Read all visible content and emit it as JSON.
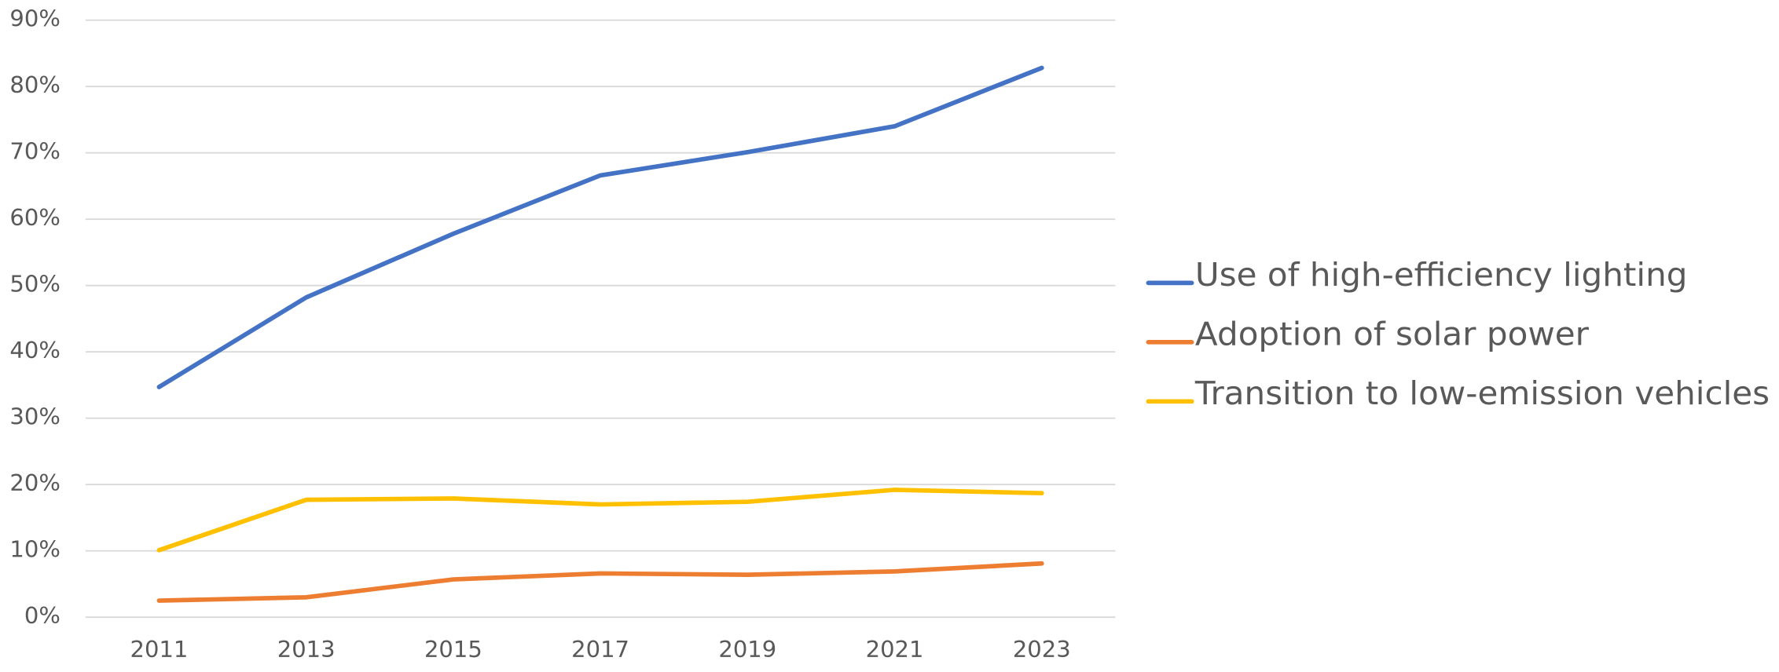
{
  "chart_data": {
    "type": "line",
    "categories": [
      "2011",
      "2013",
      "2015",
      "2017",
      "2019",
      "2021",
      "2023"
    ],
    "series": [
      {
        "name": "Use of high-efficiency lighting",
        "color": "#4472c4",
        "values": [
          34.7,
          48.2,
          57.8,
          66.6,
          70.1,
          74.0,
          82.8
        ]
      },
      {
        "name": "Adoption of solar power",
        "color": "#ed7d31",
        "values": [
          2.5,
          3.0,
          5.7,
          6.6,
          6.4,
          6.9,
          8.1
        ]
      },
      {
        "name": "Transition to low-emission vehicles",
        "color": "#ffc000",
        "values": [
          10.1,
          17.7,
          17.9,
          17.0,
          17.4,
          19.2,
          18.7
        ]
      }
    ],
    "ylim": [
      0,
      90
    ],
    "yticks": [
      {
        "value": 0,
        "label": "0%"
      },
      {
        "value": 10,
        "label": "10%"
      },
      {
        "value": 20,
        "label": "20%"
      },
      {
        "value": 30,
        "label": "30%"
      },
      {
        "value": 40,
        "label": "40%"
      },
      {
        "value": 50,
        "label": "50%"
      },
      {
        "value": 60,
        "label": "60%"
      },
      {
        "value": 70,
        "label": "70%"
      },
      {
        "value": 80,
        "label": "80%"
      },
      {
        "value": 90,
        "label": "90%"
      }
    ],
    "grid": true,
    "legend": "right"
  }
}
